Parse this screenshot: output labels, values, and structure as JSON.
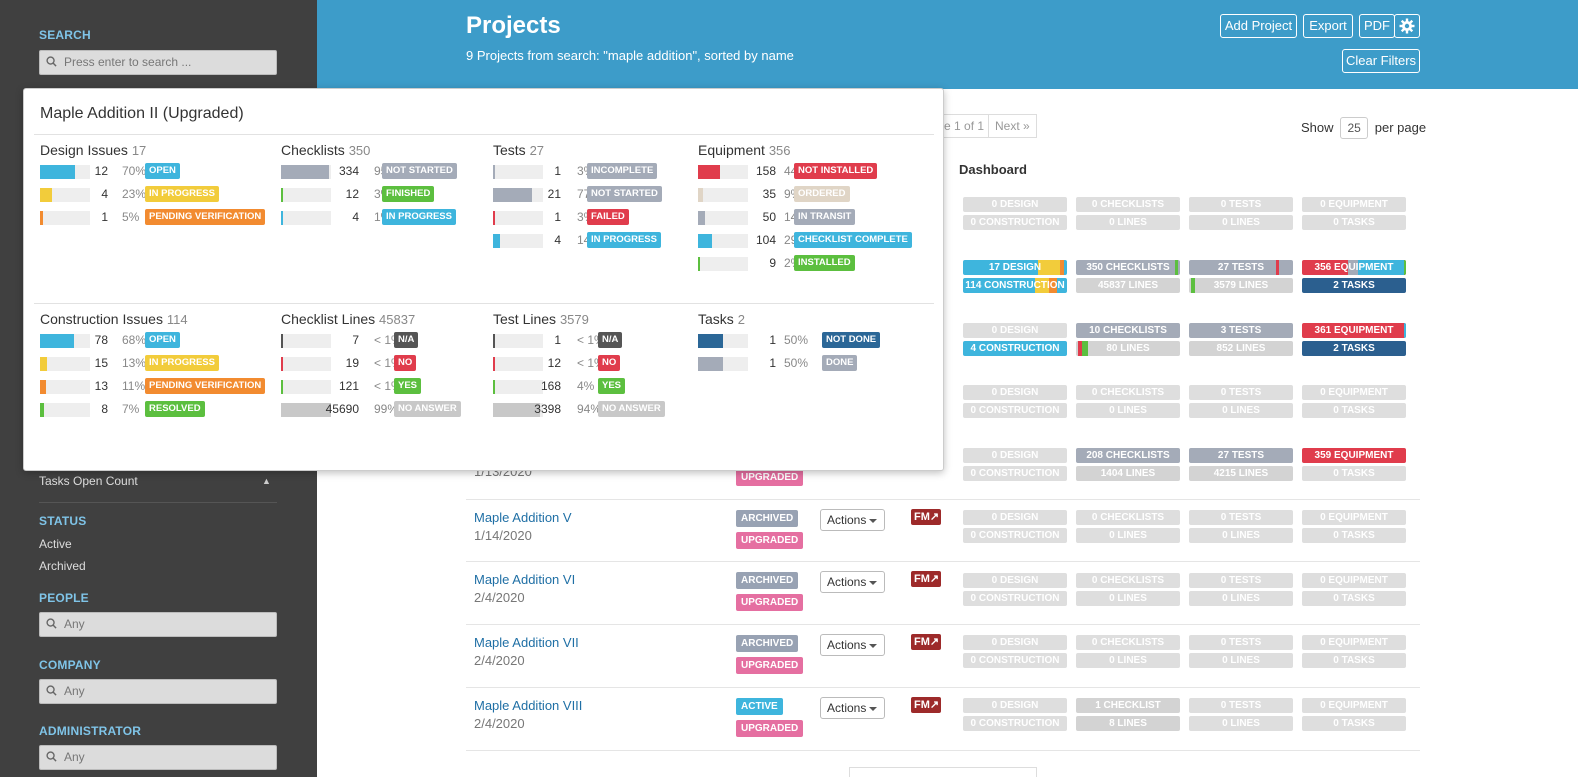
{
  "sidebar": {
    "search_heading": "SEARCH",
    "search_placeholder": "Press enter to search ...",
    "sort_label": "Tasks Open Count",
    "status_heading": "STATUS",
    "status_items": [
      "Active",
      "Archived"
    ],
    "people_heading": "PEOPLE",
    "people_placeholder": "Any",
    "company_heading": "COMPANY",
    "company_placeholder": "Any",
    "administrator_heading": "ADMINISTRATOR",
    "administrator_placeholder": "Any"
  },
  "header": {
    "title": "Projects",
    "subtitle": "9 Projects from search: \"maple addition\", sorted by name",
    "add_project": "Add Project",
    "export": "Export",
    "pdf": "PDF",
    "clear_filters": "Clear Filters"
  },
  "pagination": {
    "page_text": "e 1 of 1",
    "next": "Next »",
    "show_label": "Show",
    "per_page_value": "25",
    "per_page_label": "per page"
  },
  "table": {
    "dashboard_header": "Dashboard",
    "actions_label": "Actions",
    "fm_label": "FM",
    "partial_date": "1/13/2020",
    "rows": [
      {
        "name": "Maple Addition V",
        "date": "1/14/2020",
        "status": "ARCHIVED",
        "tag": "UPGRADED"
      },
      {
        "name": "Maple Addition VI",
        "date": "2/4/2020",
        "status": "ARCHIVED",
        "tag": "UPGRADED"
      },
      {
        "name": "Maple Addition VII",
        "date": "2/4/2020",
        "status": "ARCHIVED",
        "tag": "UPGRADED"
      },
      {
        "name": "Maple Addition VIII",
        "date": "2/4/2020",
        "status": "ACTIVE",
        "tag": "UPGRADED"
      }
    ],
    "partial_tag": "UPGRADED",
    "dashboards": [
      [
        "0 DESIGN",
        "0 CONSTRUCTION",
        "0 CHECKLISTS",
        "0 LINES",
        "0 TESTS",
        "0 LINES",
        "0 EQUIPMENT",
        "0 TASKS"
      ],
      [
        "17 DESIGN",
        "114 CONSTRUCTION",
        "350 CHECKLISTS",
        "45837 LINES",
        "27 TESTS",
        "3579 LINES",
        "356 EQUIPMENT",
        "2 TASKS"
      ],
      [
        "0 DESIGN",
        "4 CONSTRUCTION",
        "10 CHECKLISTS",
        "80 LINES",
        "3 TESTS",
        "852 LINES",
        "361 EQUIPMENT",
        "2 TASKS"
      ],
      [
        "0 DESIGN",
        "0 CONSTRUCTION",
        "0 CHECKLISTS",
        "0 LINES",
        "0 TESTS",
        "0 LINES",
        "0 EQUIPMENT",
        "0 TASKS"
      ],
      [
        "0 DESIGN",
        "0 CONSTRUCTION",
        "208 CHECKLISTS",
        "1404 LINES",
        "27 TESTS",
        "4215 LINES",
        "359 EQUIPMENT",
        "0 TASKS"
      ],
      [
        "0 DESIGN",
        "0 CONSTRUCTION",
        "0 CHECKLISTS",
        "0 LINES",
        "0 TESTS",
        "0 LINES",
        "0 EQUIPMENT",
        "0 TASKS"
      ],
      [
        "0 DESIGN",
        "0 CONSTRUCTION",
        "0 CHECKLISTS",
        "0 LINES",
        "0 TESTS",
        "0 LINES",
        "0 EQUIPMENT",
        "0 TASKS"
      ],
      [
        "0 DESIGN",
        "0 CONSTRUCTION",
        "0 CHECKLISTS",
        "0 LINES",
        "0 TESTS",
        "0 LINES",
        "0 EQUIPMENT",
        "0 TASKS"
      ],
      [
        "0 DESIGN",
        "0 CONSTRUCTION",
        "1 CHECKLIST",
        "8 LINES",
        "0 TESTS",
        "0 LINES",
        "0 EQUIPMENT",
        "0 TASKS"
      ]
    ]
  },
  "popover": {
    "title": "Maple Addition II (Upgraded)",
    "categories": [
      {
        "title": "Design Issues",
        "count": "17",
        "stats": [
          {
            "n": "12",
            "p": "70%",
            "label": "OPEN",
            "color": "#3eb5dd",
            "fill": 0.7
          },
          {
            "n": "4",
            "p": "23%",
            "label": "IN PROGRESS",
            "color": "#f2cc3b",
            "fill": 0.23
          },
          {
            "n": "1",
            "p": "5%",
            "label": "PENDING VERIFICATION",
            "color": "#f28b30",
            "fill": 0.05
          }
        ]
      },
      {
        "title": "Checklists",
        "count": "350",
        "stats": [
          {
            "n": "334",
            "p": "95%",
            "label": "NOT STARTED",
            "color": "#a4abb8",
            "fill": 0.95
          },
          {
            "n": "12",
            "p": "3%",
            "label": "FINISHED",
            "color": "#5cbf3f",
            "fill": 0.03
          },
          {
            "n": "4",
            "p": "1%",
            "label": "IN PROGRESS",
            "color": "#3eb5dd",
            "fill": 0.01
          }
        ]
      },
      {
        "title": "Tests",
        "count": "27",
        "stats": [
          {
            "n": "1",
            "p": "3%",
            "label": "INCOMPLETE",
            "color": "#a4abb8",
            "fill": 0.03
          },
          {
            "n": "21",
            "p": "77%",
            "label": "NOT STARTED",
            "color": "#a4abb8",
            "fill": 0.77
          },
          {
            "n": "1",
            "p": "3%",
            "label": "FAILED",
            "color": "#e03c4c",
            "fill": 0.03
          },
          {
            "n": "4",
            "p": "14%",
            "label": "IN PROGRESS",
            "color": "#3eb5dd",
            "fill": 0.14
          }
        ]
      },
      {
        "title": "Equipment",
        "count": "356",
        "stats": [
          {
            "n": "158",
            "p": "44%",
            "label": "NOT INSTALLED",
            "color": "#e03c4c",
            "fill": 0.44
          },
          {
            "n": "35",
            "p": "9%",
            "label": "ORDERED",
            "color": "#e0d5c6",
            "fill": 0.09
          },
          {
            "n": "50",
            "p": "14%",
            "label": "IN TRANSIT",
            "color": "#a4abb8",
            "fill": 0.14
          },
          {
            "n": "104",
            "p": "29%",
            "label": "CHECKLIST COMPLETE",
            "color": "#3eb5dd",
            "fill": 0.29
          },
          {
            "n": "9",
            "p": "2%",
            "label": "INSTALLED",
            "color": "#5cbf3f",
            "fill": 0.02
          }
        ]
      },
      {
        "title": "Construction Issues",
        "count": "114",
        "stats": [
          {
            "n": "78",
            "p": "68%",
            "label": "OPEN",
            "color": "#3eb5dd",
            "fill": 0.68
          },
          {
            "n": "15",
            "p": "13%",
            "label": "IN PROGRESS",
            "color": "#f2cc3b",
            "fill": 0.13
          },
          {
            "n": "13",
            "p": "11%",
            "label": "PENDING VERIFICATION",
            "color": "#f28b30",
            "fill": 0.11
          },
          {
            "n": "8",
            "p": "7%",
            "label": "RESOLVED",
            "color": "#5cbf3f",
            "fill": 0.07
          }
        ]
      },
      {
        "title": "Checklist Lines",
        "count": "45837",
        "stats": [
          {
            "n": "7",
            "p": "< 1%",
            "label": "N/A",
            "color": "#555555",
            "fill": 0.0
          },
          {
            "n": "19",
            "p": "< 1%",
            "label": "NO",
            "color": "#e03c4c",
            "fill": 0.0
          },
          {
            "n": "121",
            "p": "< 1%",
            "label": "YES",
            "color": "#5cbf3f",
            "fill": 0.0
          },
          {
            "n": "45690",
            "p": "99%",
            "label": "NO ANSWER",
            "color": "#c8c8c8",
            "fill": 0.99
          }
        ]
      },
      {
        "title": "Test Lines",
        "count": "3579",
        "stats": [
          {
            "n": "1",
            "p": "< 1%",
            "label": "N/A",
            "color": "#555555",
            "fill": 0.0
          },
          {
            "n": "12",
            "p": "< 1%",
            "label": "NO",
            "color": "#e03c4c",
            "fill": 0.0
          },
          {
            "n": "168",
            "p": "4%",
            "label": "YES",
            "color": "#5cbf3f",
            "fill": 0.04
          },
          {
            "n": "3398",
            "p": "94%",
            "label": "NO ANSWER",
            "color": "#c8c8c8",
            "fill": 0.94
          }
        ]
      },
      {
        "title": "Tasks",
        "count": "2",
        "stats": [
          {
            "n": "1",
            "p": "50%",
            "label": "NOT DONE",
            "color": "#2b6797",
            "fill": 0.5
          },
          {
            "n": "1",
            "p": "50%",
            "label": "DONE",
            "color": "#a4abb8",
            "fill": 0.5
          }
        ]
      }
    ]
  }
}
